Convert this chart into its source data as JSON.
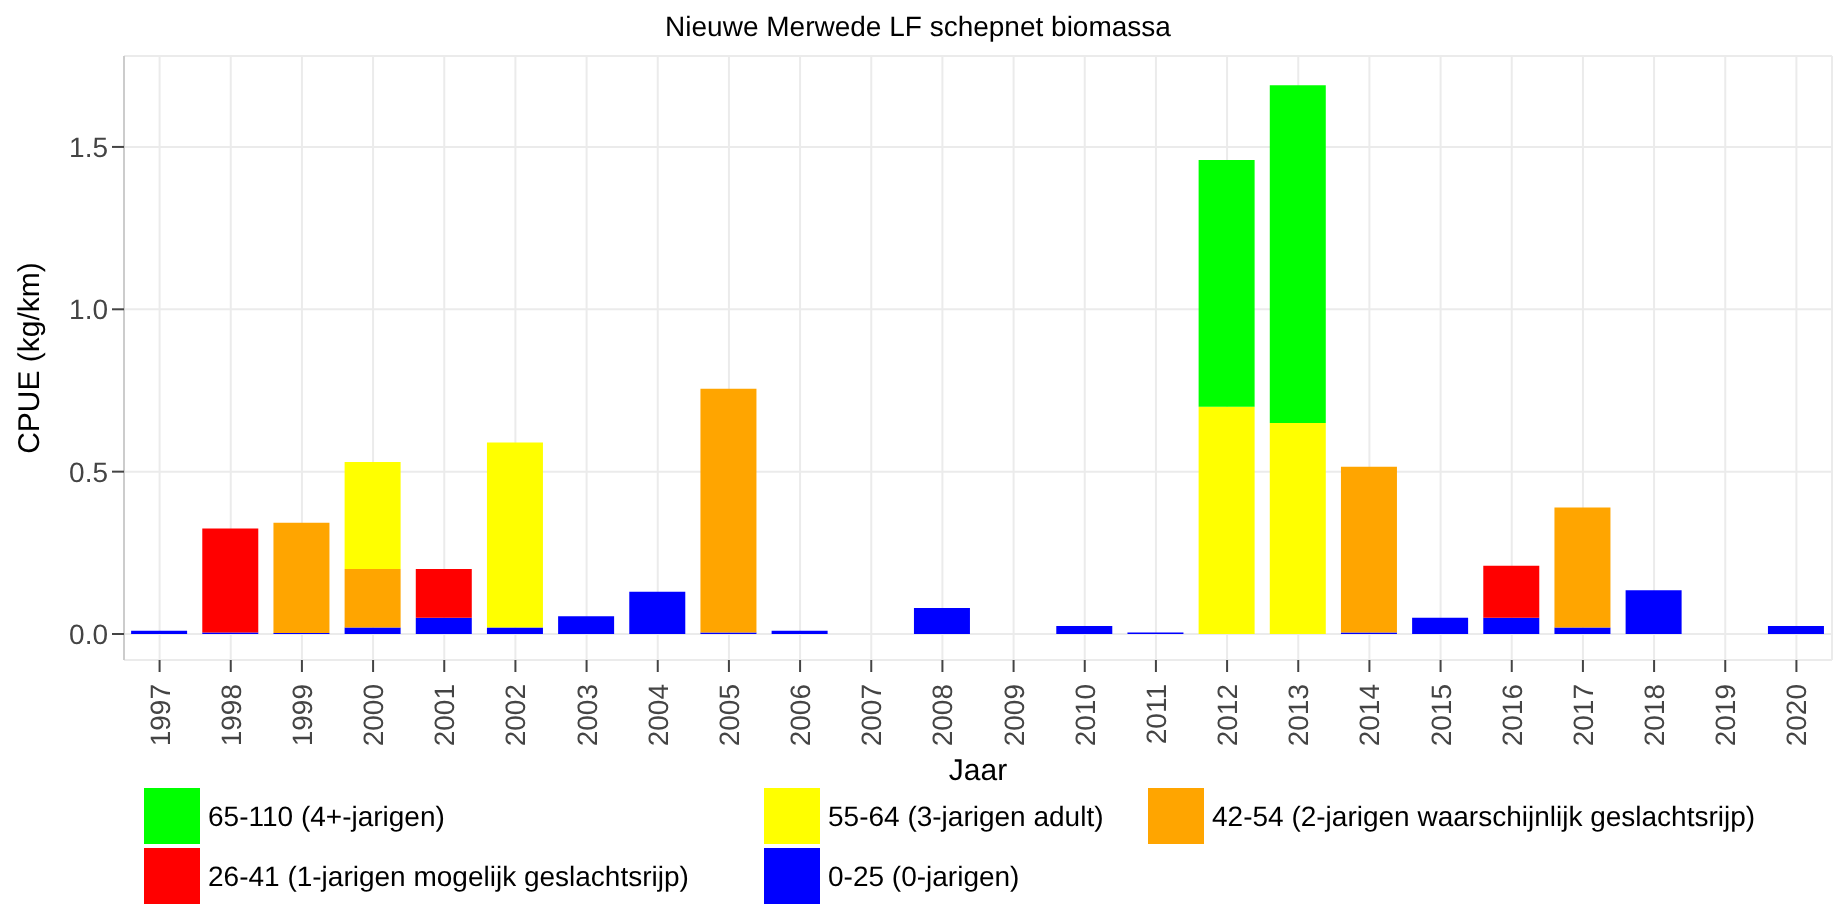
{
  "chart_data": {
    "type": "bar",
    "title": "Nieuwe Merwede LF schepnet biomassa",
    "xlabel": "Jaar",
    "ylabel": "CPUE (kg/km)",
    "categories": [
      "1997",
      "1998",
      "1999",
      "2000",
      "2001",
      "2002",
      "2003",
      "2004",
      "2005",
      "2006",
      "2007",
      "2008",
      "2009",
      "2010",
      "2011",
      "2012",
      "2013",
      "2014",
      "2015",
      "2016",
      "2017",
      "2018",
      "2019",
      "2020"
    ],
    "stacked": true,
    "series": [
      {
        "name": "0-25 (0-jarigen)",
        "color": "#0000ff",
        "values": [
          0.01,
          0.005,
          0.003,
          0.02,
          0.05,
          0.02,
          0.055,
          0.13,
          0.005,
          0.01,
          null,
          0.08,
          null,
          0.025,
          0.005,
          null,
          null,
          0.005,
          0.05,
          0.05,
          0.02,
          0.135,
          null,
          0.025
        ]
      },
      {
        "name": "26-41 (1-jarigen mogelijk geslachtsrijp)",
        "color": "#ff0000",
        "values": [
          null,
          0.32,
          null,
          null,
          0.15,
          null,
          null,
          null,
          null,
          null,
          null,
          null,
          null,
          null,
          null,
          null,
          null,
          null,
          null,
          0.16,
          null,
          null,
          null,
          null
        ]
      },
      {
        "name": "42-54 (2-jarigen waarschijnlijk geslachtsrijp)",
        "color": "#ffa500",
        "values": [
          null,
          null,
          0.34,
          0.18,
          null,
          null,
          null,
          null,
          0.75,
          null,
          null,
          null,
          null,
          null,
          null,
          null,
          null,
          0.51,
          null,
          null,
          0.37,
          null,
          null,
          null
        ]
      },
      {
        "name": "55-64 (3-jarigen adult)",
        "color": "#ffff00",
        "values": [
          null,
          null,
          null,
          0.33,
          null,
          0.57,
          null,
          null,
          null,
          null,
          null,
          null,
          null,
          null,
          null,
          0.7,
          0.65,
          null,
          null,
          null,
          null,
          null,
          null,
          null
        ]
      },
      {
        "name": "65-110 (4+-jarigen)",
        "color": "#00ff00",
        "values": [
          null,
          null,
          null,
          null,
          null,
          null,
          null,
          null,
          null,
          null,
          null,
          null,
          null,
          null,
          null,
          0.76,
          1.04,
          null,
          null,
          null,
          null,
          null,
          null,
          null
        ]
      }
    ],
    "ylim": [
      -0.08,
      1.78
    ],
    "yticks": [
      {
        "value": 0,
        "label": "0.0"
      },
      0.5,
      {
        "value": 1,
        "label": "1.0"
      },
      1.5
    ],
    "grid": true,
    "legend": "bottom"
  }
}
